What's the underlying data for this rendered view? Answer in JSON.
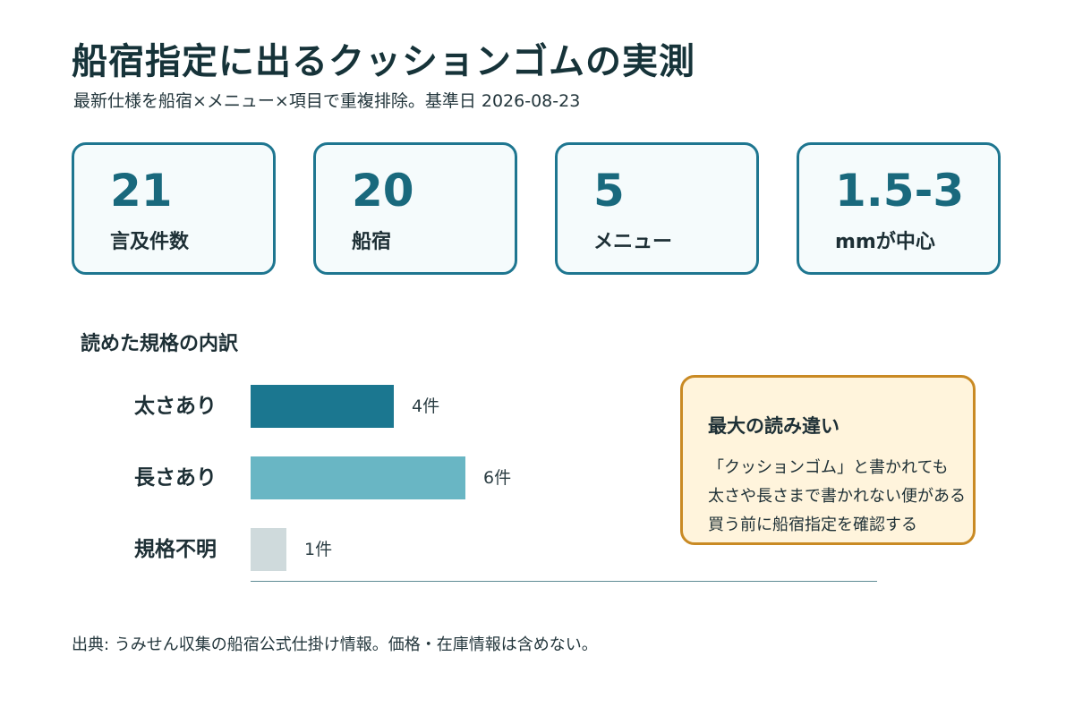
{
  "header": {
    "title": "船宿指定に出るクッションゴムの実測",
    "subtitle": "最新仕様を船宿×メニュー×項目で重複排除。基準日 2026-08-23"
  },
  "kpis": [
    {
      "value": "21",
      "label": "言及件数"
    },
    {
      "value": "20",
      "label": "船宿"
    },
    {
      "value": "5",
      "label": "メニュー"
    },
    {
      "value": "1.5-3",
      "label": "mmが中心"
    }
  ],
  "colors": {
    "accent": "#1e7690",
    "bar_primary": "#1b7790",
    "bar_secondary": "#69b6c4",
    "bar_muted": "#cfdadc",
    "callout_border": "#c98a24",
    "callout_bg": "#fff4dc"
  },
  "chart_data": {
    "type": "bar",
    "orientation": "horizontal",
    "title": "読めた規格の内訳",
    "categories": [
      "太さあり",
      "長さあり",
      "規格不明"
    ],
    "values": [
      4,
      6,
      1
    ],
    "value_labels": [
      "4件",
      "6件",
      "1件"
    ],
    "xlim": [
      0,
      17.5
    ],
    "grid": false,
    "legend": "none"
  },
  "callout": {
    "title": "最大の読み違い",
    "lines": [
      "「クッションゴム」と書かれても",
      "太さや長さまで書かれない便がある",
      "買う前に船宿指定を確認する"
    ]
  },
  "source": "出典: うみせん収集の船宿公式仕掛け情報。価格・在庫情報は含めない。"
}
